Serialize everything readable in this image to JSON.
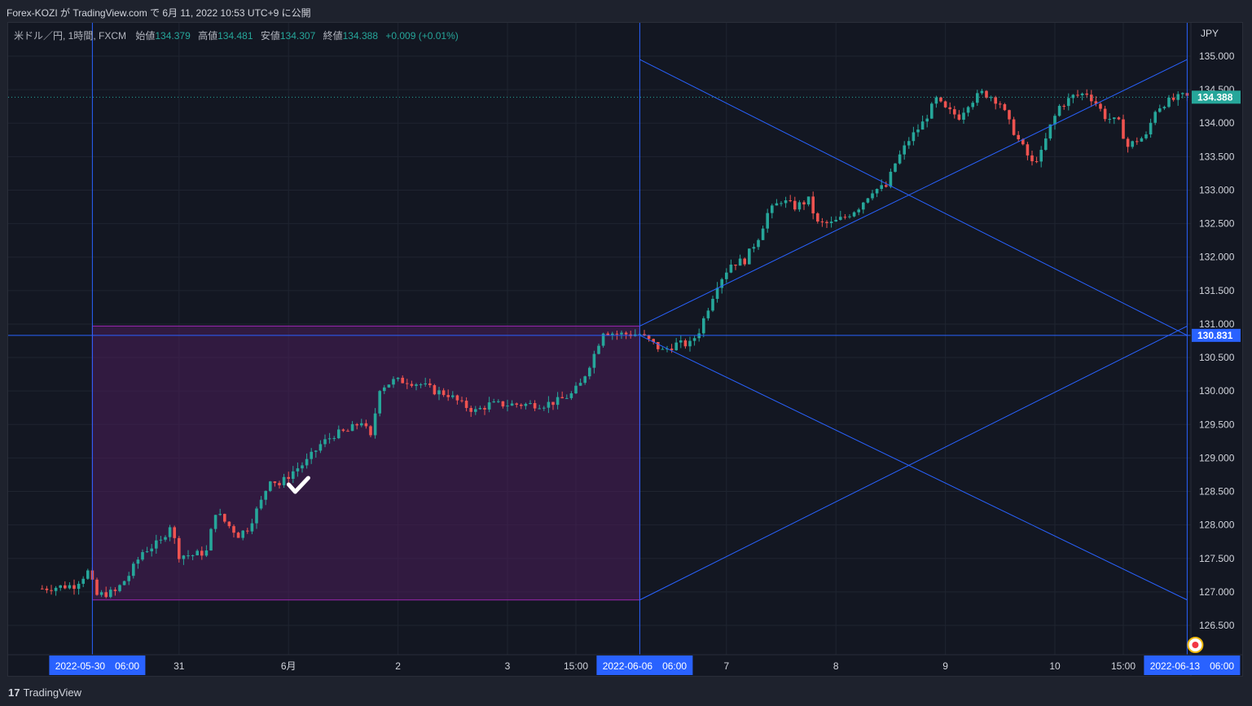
{
  "header": {
    "publish_line": "Forex-KOZI が TradingView.com で 6月 11, 2022 10:53 UTC+9 に公開"
  },
  "legend": {
    "symbol": "米ドル／円, 1時間, FXCM",
    "open_label": "始値",
    "open": "134.379",
    "high_label": "高値",
    "high": "134.481",
    "low_label": "安値",
    "low": "134.307",
    "close_label": "終値",
    "close": "134.388",
    "change": "+0.009 (+0.01%)"
  },
  "footer": {
    "brand": "TradingView",
    "logo_icon": "tradingview-logo-icon"
  },
  "colors": {
    "background": "#131722",
    "grid": "#1f2430",
    "up": "#26a69a",
    "down": "#ef5350",
    "drawing": "#2962ff",
    "box_fill": "#4a1e5a",
    "box_border": "#9c27b0",
    "axis_text": "#d1d4dc"
  },
  "chart_data": {
    "type": "candlestick",
    "symbol": "USDJPY",
    "timeframe": "1時間",
    "y_axis": {
      "unit": "JPY",
      "range": [
        126.1,
        135.5
      ],
      "ticks": [
        "126.500",
        "127.000",
        "127.500",
        "128.000",
        "128.500",
        "129.000",
        "129.500",
        "130.000",
        "130.500",
        "131.000",
        "131.500",
        "132.000",
        "132.500",
        "133.000",
        "133.500",
        "134.000",
        "134.500",
        "135.000"
      ]
    },
    "x_axis": {
      "start": "2022-05-30 00:00",
      "end": "2022-06-13 14:00",
      "ticks": [
        {
          "label": "31",
          "h": 28
        },
        {
          "label": "6月",
          "h": 52
        },
        {
          "label": "2",
          "h": 76
        },
        {
          "label": "3",
          "h": 100
        },
        {
          "label": "15:00",
          "h": 115
        },
        {
          "label": "7",
          "h": 148
        },
        {
          "label": "8",
          "h": 172
        },
        {
          "label": "9",
          "h": 196
        },
        {
          "label": "10",
          "h": 220
        },
        {
          "label": "15:00",
          "h": 235
        }
      ],
      "highlight_labels": [
        {
          "label": "2022-05-30　06:00",
          "h": 9
        },
        {
          "label": "2022-06-06　06:00",
          "h": 129
        },
        {
          "label": "2022-06-13　06:00",
          "h": 249
        }
      ]
    },
    "price_labels": [
      {
        "value": 134.388,
        "text": "134.388",
        "kind": "last"
      },
      {
        "value": 130.831,
        "text": "130.831",
        "kind": "horizontal-line"
      }
    ],
    "close_path": [
      [
        -2,
        127.05
      ],
      [
        5,
        127.1
      ],
      [
        8,
        127.3
      ],
      [
        10,
        126.95
      ],
      [
        14,
        127.0
      ],
      [
        17,
        127.25
      ],
      [
        20,
        127.6
      ],
      [
        24,
        127.75
      ],
      [
        26,
        128.0
      ],
      [
        28,
        127.55
      ],
      [
        31,
        127.55
      ],
      [
        34,
        127.6
      ],
      [
        36,
        128.2
      ],
      [
        38,
        128.05
      ],
      [
        41,
        127.85
      ],
      [
        43,
        127.95
      ],
      [
        46,
        128.35
      ],
      [
        48,
        128.7
      ],
      [
        50,
        128.6
      ],
      [
        53,
        128.8
      ],
      [
        56,
        128.95
      ],
      [
        59,
        129.2
      ],
      [
        62,
        129.35
      ],
      [
        65,
        129.4
      ],
      [
        68,
        129.55
      ],
      [
        70,
        129.3
      ],
      [
        72,
        130.05
      ],
      [
        75,
        130.15
      ],
      [
        78,
        130.15
      ],
      [
        81,
        130.1
      ],
      [
        84,
        130.0
      ],
      [
        87,
        129.95
      ],
      [
        90,
        129.8
      ],
      [
        93,
        129.7
      ],
      [
        96,
        129.8
      ],
      [
        99,
        129.8
      ],
      [
        102,
        129.8
      ],
      [
        105,
        129.8
      ],
      [
        108,
        129.8
      ],
      [
        111,
        129.85
      ],
      [
        114,
        129.95
      ],
      [
        116,
        130.1
      ],
      [
        119,
        130.55
      ],
      [
        121,
        130.9
      ],
      [
        124,
        130.85
      ],
      [
        127,
        130.85
      ],
      [
        129,
        130.85
      ],
      [
        131,
        130.75
      ],
      [
        134,
        130.6
      ],
      [
        137,
        130.7
      ],
      [
        140,
        130.7
      ],
      [
        142,
        130.9
      ],
      [
        144,
        131.25
      ],
      [
        146,
        131.6
      ],
      [
        149,
        131.9
      ],
      [
        152,
        131.95
      ],
      [
        155,
        132.3
      ],
      [
        157,
        132.65
      ],
      [
        160,
        132.85
      ],
      [
        163,
        132.75
      ],
      [
        166,
        132.85
      ],
      [
        168,
        132.5
      ],
      [
        171,
        132.5
      ],
      [
        174,
        132.6
      ],
      [
        177,
        132.75
      ],
      [
        180,
        133.0
      ],
      [
        183,
        133.05
      ],
      [
        185,
        133.4
      ],
      [
        188,
        133.75
      ],
      [
        191,
        134.0
      ],
      [
        194,
        134.35
      ],
      [
        196,
        134.2
      ],
      [
        199,
        134.1
      ],
      [
        201,
        134.3
      ],
      [
        204,
        134.45
      ],
      [
        206,
        134.4
      ],
      [
        208,
        134.3
      ],
      [
        210,
        134.0
      ],
      [
        212,
        133.75
      ],
      [
        215,
        133.4
      ],
      [
        217,
        133.55
      ],
      [
        219,
        133.95
      ],
      [
        221,
        134.25
      ],
      [
        224,
        134.4
      ],
      [
        227,
        134.45
      ],
      [
        229,
        134.3
      ],
      [
        231,
        134.1
      ],
      [
        234,
        134.0
      ],
      [
        236,
        133.65
      ],
      [
        238,
        133.75
      ],
      [
        240,
        133.8
      ],
      [
        242,
        134.2
      ],
      [
        244,
        134.3
      ],
      [
        246,
        134.35
      ],
      [
        248,
        134.4
      ],
      [
        249,
        134.388
      ]
    ],
    "drawings": {
      "rectangle": {
        "h1": 9,
        "h2": 129,
        "p1": 130.97,
        "p2": 126.88
      },
      "vertical_lines_h": [
        9,
        129,
        249
      ],
      "horizontal_line": 130.831,
      "trend_lines": [
        [
          [
            129,
            134.95
          ],
          [
            249,
            130.831
          ]
        ],
        [
          [
            129,
            130.831
          ],
          [
            249,
            126.88
          ]
        ],
        [
          [
            129,
            126.88
          ],
          [
            249,
            130.97
          ]
        ],
        [
          [
            129,
            130.97
          ],
          [
            249,
            134.95
          ]
        ]
      ]
    },
    "annotations": [
      {
        "type": "check-icon",
        "h": 54,
        "p": 128.58
      }
    ]
  }
}
